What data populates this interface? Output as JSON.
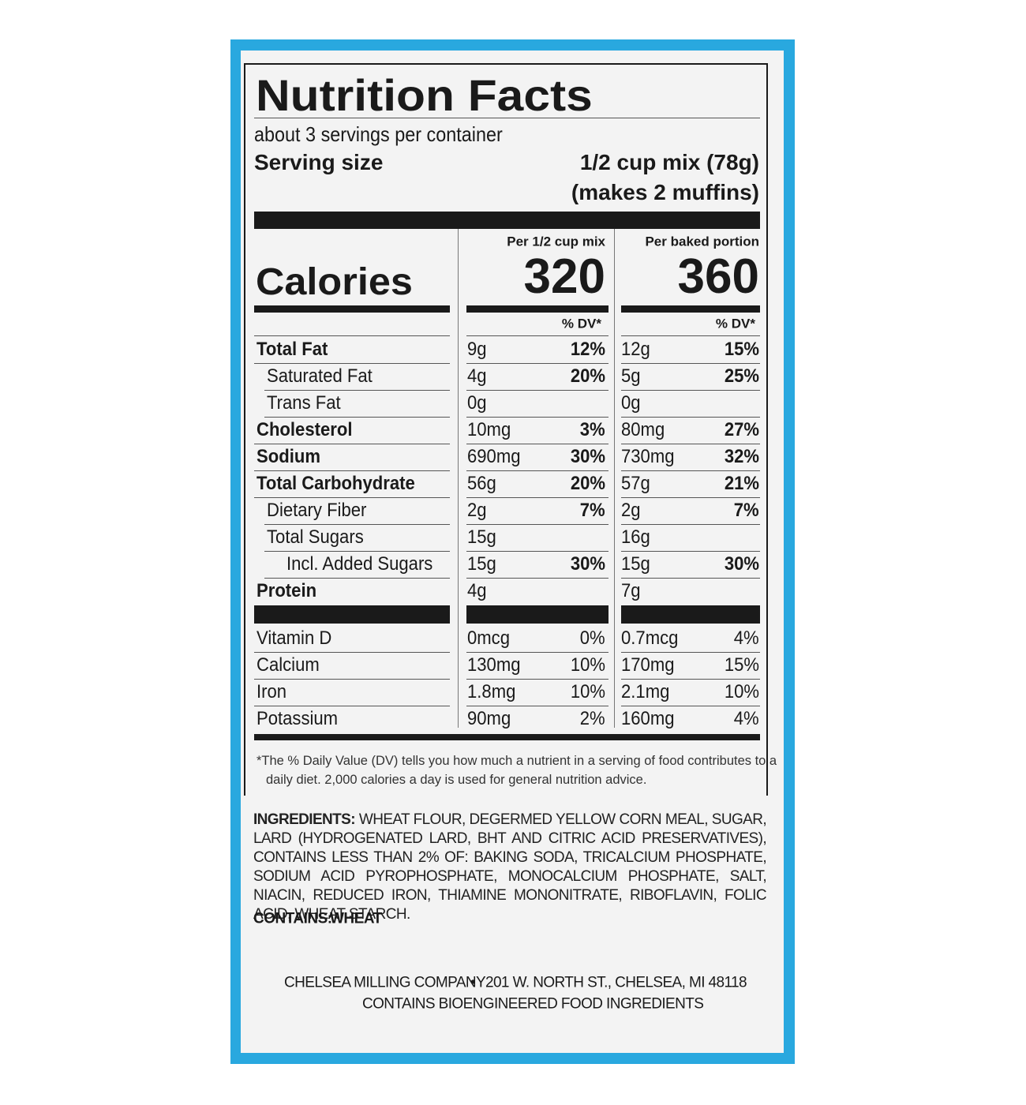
{
  "header": {
    "title": "Nutrition Facts",
    "servings": "about 3 servings per container",
    "serving_size_label": "Serving size",
    "serving_size": "1/2 cup mix (78g)",
    "serving_size_note": "(makes 2 muffins)"
  },
  "calories": {
    "label": "Calories",
    "columns": [
      {
        "header": "Per 1/2 cup mix",
        "value": "320",
        "dv_header": "% DV*"
      },
      {
        "header": "Per baked portion",
        "value": "360",
        "dv_header": "% DV*"
      }
    ]
  },
  "nutrients": [
    {
      "name": "Total Fat",
      "columns": [
        [
          "9g",
          "12%"
        ],
        [
          "12g",
          "15%"
        ]
      ]
    },
    {
      "name": "Saturated Fat",
      "columns": [
        [
          "4g",
          "20%"
        ],
        [
          "5g",
          "25%"
        ]
      ]
    },
    {
      "name": "Trans Fat",
      "columns": [
        [
          "0g",
          null
        ],
        [
          "0g",
          null
        ]
      ]
    },
    {
      "name": "Cholesterol",
      "columns": [
        [
          "10mg",
          "3%"
        ],
        [
          "80mg",
          "27%"
        ]
      ]
    },
    {
      "name": "Sodium",
      "columns": [
        [
          "690mg",
          "30%"
        ],
        [
          "730mg",
          "32%"
        ]
      ]
    },
    {
      "name": "Total Carbohydrate",
      "columns": [
        [
          "56g",
          "20%"
        ],
        [
          "57g",
          "21%"
        ]
      ]
    },
    {
      "name": "Dietary Fiber",
      "columns": [
        [
          "2g",
          "7%"
        ],
        [
          "2g",
          "7%"
        ]
      ]
    },
    {
      "name": "Total Sugars",
      "columns": [
        [
          "15g",
          null
        ],
        [
          "16g",
          null
        ]
      ]
    },
    {
      "name": "Incl. Added Sugars",
      "columns": [
        [
          "15g",
          "30%"
        ],
        [
          "15g",
          "30%"
        ]
      ]
    },
    {
      "name": "Protein",
      "columns": [
        [
          "4g",
          null
        ],
        [
          "7g",
          null
        ]
      ]
    }
  ],
  "vitamins": [
    {
      "name": "Vitamin D",
      "columns": [
        [
          "0mcg",
          "0%"
        ],
        [
          "0.7mcg",
          "4%"
        ]
      ]
    },
    {
      "name": "Calcium",
      "columns": [
        [
          "130mg",
          "10%"
        ],
        [
          "170mg",
          "15%"
        ]
      ]
    },
    {
      "name": "Iron",
      "columns": [
        [
          "1.8mg",
          "10%"
        ],
        [
          "2.1mg",
          "10%"
        ]
      ]
    },
    {
      "name": "Potassium",
      "columns": [
        [
          "90mg",
          "2%"
        ],
        [
          "160mg",
          "4%"
        ]
      ]
    }
  ],
  "footnote": "*The % Daily Value (DV) tells you how much a nutrient in a serving of food contributes to a daily diet. 2,000 calories a day is used for general nutrition advice.",
  "ingredients": {
    "label": "INGREDIENTS:",
    "text": "WHEAT FLOUR, DEGERMED YELLOW CORN MEAL, SUGAR, LARD (HYDROGENATED LARD, BHT AND CITRIC ACID PRESERVATIVES), CONTAINS LESS THAN 2% OF: BAKING SODA, TRICALCIUM PHOSPHATE, SODIUM ACID PYROPHOSPHATE, MONOCALCIUM PHOSPHATE, SALT, NIACIN, REDUCED IRON, THIAMINE MONONITRATE, RIBOFLAVIN, FOLIC ACID, WHEAT STARCH."
  },
  "contains": {
    "label": "CONTAINS:",
    "text": "WHEAT"
  },
  "company": {
    "name": "CHELSEA MILLING COMPANY",
    "address": "201 W. NORTH ST., CHELSEA, MI 48118",
    "note": "CONTAINS BIOENGINEERED FOOD INGREDIENTS"
  }
}
